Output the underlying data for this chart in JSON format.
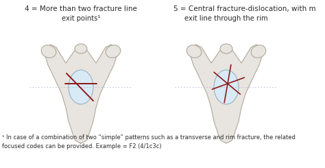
{
  "title_left": "4 = More than two fracture line",
  "title_right": "5 = Central fracture-dislocation, with m",
  "subtitle_left": "exit points¹",
  "subtitle_right": "exit line through the rim",
  "footnote_line1": "¹ In case of a combination of two “simple” patterns such as a transverse and rim fracture, the related",
  "footnote_line2": "focused codes can be provided. Example = F2 (4/1c3c)",
  "bg_color": "#ffffff",
  "text_color": "#2a2a2a",
  "bone_fill": "#e8e4df",
  "bone_outline": "#b0a89a",
  "acetabulum_fill": "#d8eaf5",
  "acetabulum_outline": "#9ab0c0",
  "fracture_color": "#8b1a1a",
  "dotted_line_color": "#b0b8d0",
  "font_size_title": 7.5,
  "font_size_subtitle": 7.2,
  "font_size_footnote": 6.0
}
